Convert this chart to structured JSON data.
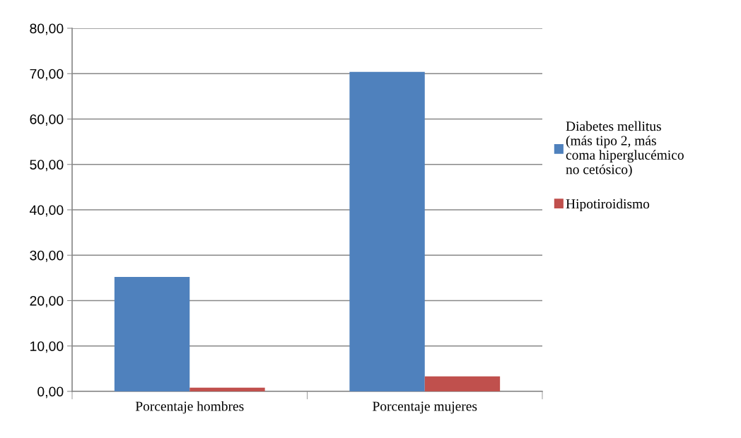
{
  "chart_data": {
    "type": "bar",
    "categories": [
      "Porcentaje hombres",
      "Porcentaje mujeres"
    ],
    "series": [
      {
        "name": "Diabetes mellitus\n(más tipo 2, más\ncoma hiperglucémico\nno cetósico)",
        "color": "#4f81bd",
        "values": [
          25.2,
          70.4
        ]
      },
      {
        "name": "Hipotiroidismo",
        "color": "#c0504d",
        "values": [
          0.8,
          3.3
        ]
      }
    ],
    "ylim": [
      0,
      80
    ],
    "yticks": [
      {
        "value": 0,
        "label": "0,00"
      },
      {
        "value": 10,
        "label": "10,00"
      },
      {
        "value": 20,
        "label": "20,00"
      },
      {
        "value": 30,
        "label": "30,00"
      },
      {
        "value": 40,
        "label": "40,00"
      },
      {
        "value": 50,
        "label": "50,00"
      },
      {
        "value": 60,
        "label": "60,00"
      },
      {
        "value": 70,
        "label": "70,00"
      },
      {
        "value": 80,
        "label": "80,00"
      }
    ],
    "grid": "y",
    "legend": "right"
  }
}
